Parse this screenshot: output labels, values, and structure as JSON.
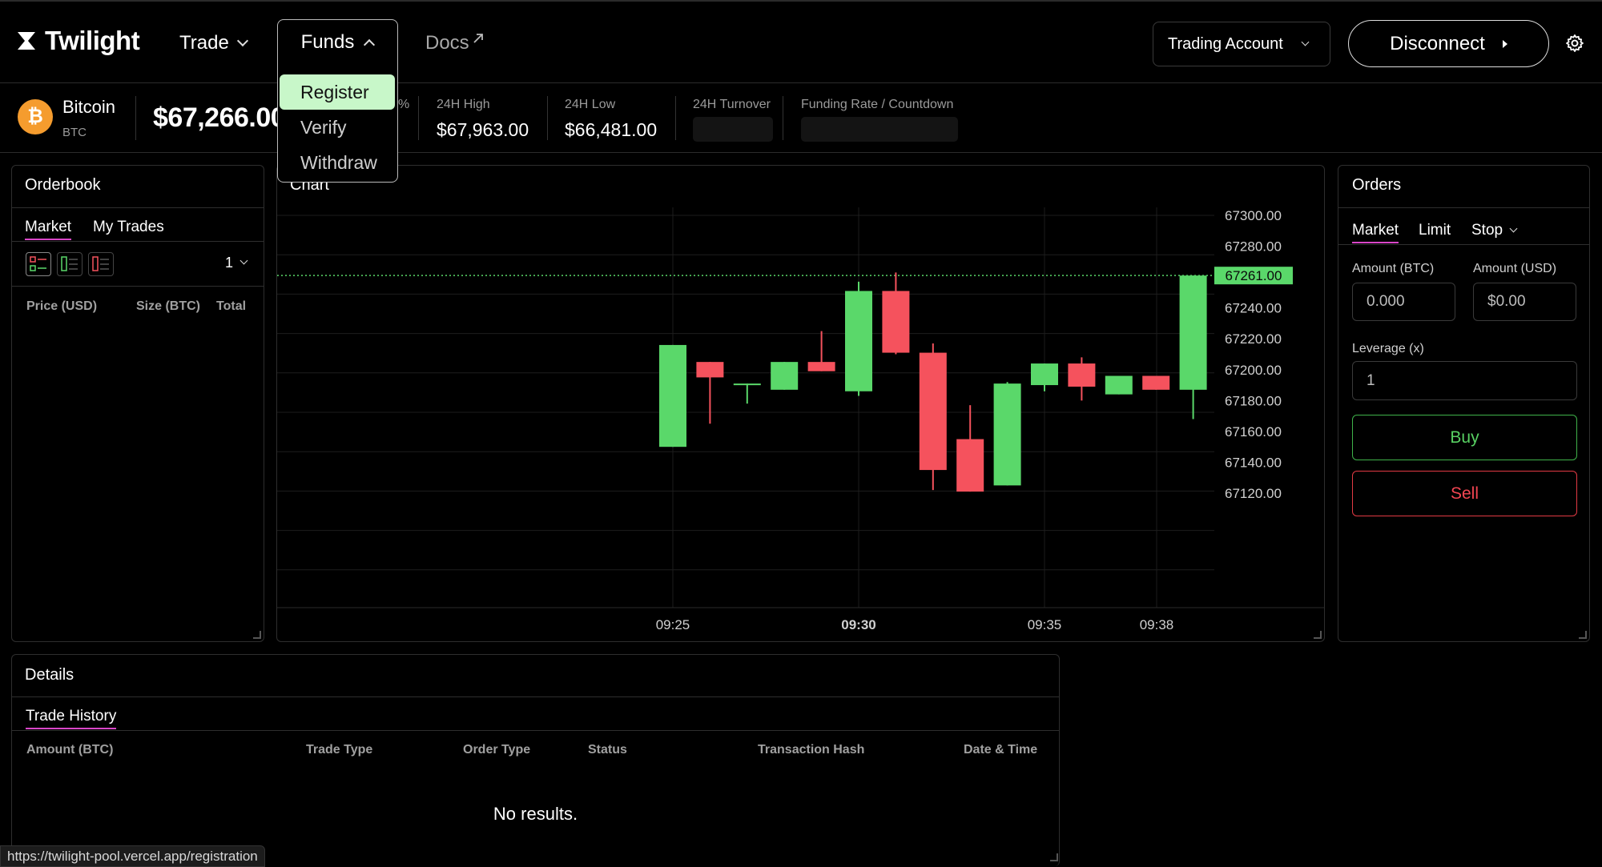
{
  "header": {
    "brand": "Twilight",
    "nav": {
      "trade": "Trade",
      "funds": "Funds",
      "docs": "Docs"
    },
    "funds_menu": [
      "Register",
      "Verify",
      "Withdraw"
    ],
    "account_select": "Trading Account",
    "disconnect": "Disconnect"
  },
  "ticker": {
    "asset_name": "Bitcoin",
    "asset_symbol": "BTC",
    "price": "$67,266.00",
    "change_fragment": "%",
    "high_label": "24H High",
    "high_value": "$67,963.00",
    "low_label": "24H Low",
    "low_value": "$66,481.00",
    "turnover_label": "24H Turnover",
    "funding_label": "Funding Rate / Countdown"
  },
  "orderbook": {
    "title": "Orderbook",
    "tabs": [
      "Market",
      "My Trades"
    ],
    "grouping": "1",
    "columns": [
      "Price (USD)",
      "Size (BTC)",
      "Total"
    ]
  },
  "chart": {
    "title": "Chart",
    "current_price_label": "67261.00",
    "colors": {
      "up": "#5ad86a",
      "down": "#f5525d"
    }
  },
  "chart_data": {
    "type": "candlestick",
    "x_ticks": [
      "09:25",
      "09:30",
      "09:35",
      "09:38"
    ],
    "y_ticks": [
      "67300.00",
      "67280.00",
      "67240.00",
      "67220.00",
      "67200.00",
      "67180.00",
      "67160.00",
      "67140.00",
      "67120.00"
    ],
    "ylim": [
      67105,
      67310
    ],
    "current_price": 67261,
    "candles": [
      {
        "o": 67150,
        "h": 67216,
        "l": 67150,
        "c": 67216
      },
      {
        "o": 67205,
        "h": 67205,
        "l": 67165,
        "c": 67195
      },
      {
        "o": 67191,
        "h": 67191,
        "l": 67178,
        "c": 67191
      },
      {
        "o": 67187,
        "h": 67205,
        "l": 67187,
        "c": 67205
      },
      {
        "o": 67205,
        "h": 67225,
        "l": 67199,
        "c": 67199
      },
      {
        "o": 67186,
        "h": 67257,
        "l": 67183,
        "c": 67251
      },
      {
        "o": 67251,
        "h": 67263,
        "l": 67210,
        "c": 67211
      },
      {
        "o": 67211,
        "h": 67217,
        "l": 67122,
        "c": 67135
      },
      {
        "o": 67155,
        "h": 67177,
        "l": 67121,
        "c": 67121
      },
      {
        "o": 67125,
        "h": 67192,
        "l": 67125,
        "c": 67191
      },
      {
        "o": 67190,
        "h": 67204,
        "l": 67186,
        "c": 67204
      },
      {
        "o": 67204,
        "h": 67208,
        "l": 67180,
        "c": 67189
      },
      {
        "o": 67184,
        "h": 67196,
        "l": 67184,
        "c": 67196
      },
      {
        "o": 67196,
        "h": 67196,
        "l": 67187,
        "c": 67187
      },
      {
        "o": 67187,
        "h": 67261,
        "l": 67168,
        "c": 67261
      }
    ]
  },
  "orders": {
    "title": "Orders",
    "tabs": [
      "Market",
      "Limit",
      "Stop"
    ],
    "amount_btc_label": "Amount (BTC)",
    "amount_btc_placeholder": "0.000",
    "amount_usd_label": "Amount (USD)",
    "amount_usd_placeholder": "$0.00",
    "leverage_label": "Leverage (x)",
    "leverage_value": "1",
    "buy": "Buy",
    "sell": "Sell"
  },
  "details": {
    "title": "Details",
    "tab": "Trade History",
    "columns": [
      "Amount (BTC)",
      "Trade Type",
      "Order Type",
      "Status",
      "Transaction Hash",
      "Date & Time"
    ],
    "empty": "No results."
  },
  "statusbar": {
    "url": "https://twilight-pool.vercel.app/registration"
  }
}
